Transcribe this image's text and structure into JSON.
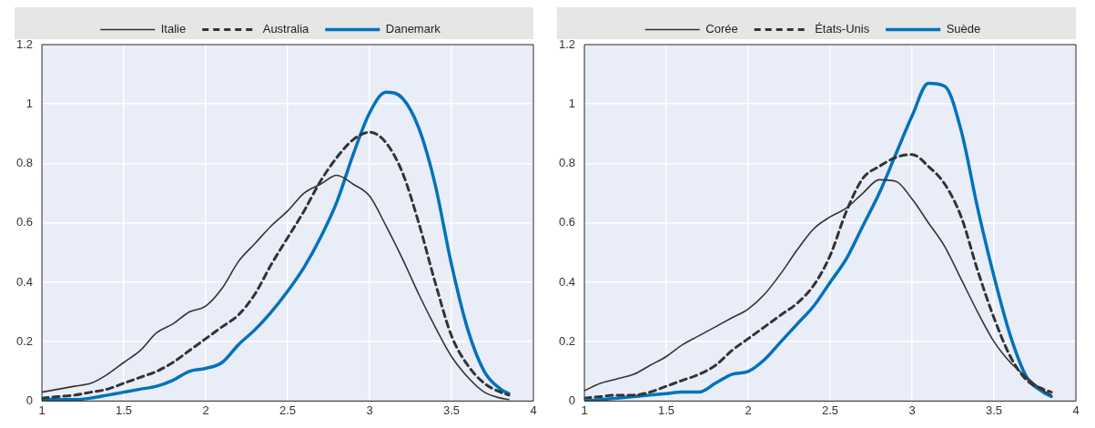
{
  "chart_data": [
    {
      "type": "line",
      "x": [
        1,
        1.1,
        1.2,
        1.3,
        1.4,
        1.5,
        1.6,
        1.7,
        1.8,
        1.9,
        2,
        2.1,
        2.2,
        2.3,
        2.4,
        2.5,
        2.6,
        2.7,
        2.8,
        2.9,
        3,
        3.1,
        3.2,
        3.3,
        3.4,
        3.5,
        3.6,
        3.7,
        3.8,
        3.85
      ],
      "series": [
        {
          "name": "Italie",
          "color": "#333333",
          "line_style": "solid",
          "values": [
            0.03,
            0.04,
            0.05,
            0.06,
            0.09,
            0.13,
            0.17,
            0.23,
            0.26,
            0.3,
            0.32,
            0.38,
            0.47,
            0.53,
            0.59,
            0.64,
            0.7,
            0.73,
            0.76,
            0.73,
            0.69,
            0.59,
            0.48,
            0.36,
            0.25,
            0.15,
            0.08,
            0.03,
            0.01,
            0.005
          ]
        },
        {
          "name": "Australia",
          "color": "#333333",
          "line_style": "dashed",
          "values": [
            0.01,
            0.015,
            0.02,
            0.03,
            0.04,
            0.06,
            0.08,
            0.1,
            0.13,
            0.17,
            0.21,
            0.25,
            0.29,
            0.36,
            0.46,
            0.55,
            0.64,
            0.74,
            0.82,
            0.88,
            0.905,
            0.87,
            0.77,
            0.6,
            0.4,
            0.22,
            0.12,
            0.06,
            0.03,
            0.02
          ]
        },
        {
          "name": "Danemark",
          "color": "#0072bc",
          "line_style": "solid",
          "values": [
            0.005,
            0.005,
            0.005,
            0.01,
            0.02,
            0.03,
            0.04,
            0.05,
            0.07,
            0.1,
            0.11,
            0.13,
            0.19,
            0.24,
            0.3,
            0.37,
            0.45,
            0.55,
            0.67,
            0.83,
            0.97,
            1.04,
            1.02,
            0.92,
            0.73,
            0.46,
            0.24,
            0.1,
            0.04,
            0.025
          ]
        }
      ],
      "xlim": [
        1,
        4
      ],
      "xticks": [
        1,
        1.5,
        2,
        2.5,
        3,
        3.5,
        4
      ],
      "ylim": [
        0,
        1.2
      ],
      "yticks": [
        0,
        0.2,
        0.4,
        0.6,
        0.8,
        1,
        1.2
      ],
      "grid": true,
      "legend": "top"
    },
    {
      "type": "line",
      "x": [
        1,
        1.1,
        1.2,
        1.3,
        1.4,
        1.5,
        1.6,
        1.7,
        1.8,
        1.9,
        2,
        2.1,
        2.2,
        2.3,
        2.4,
        2.5,
        2.6,
        2.7,
        2.8,
        2.9,
        3,
        3.1,
        3.2,
        3.3,
        3.4,
        3.5,
        3.6,
        3.7,
        3.8,
        3.85
      ],
      "series": [
        {
          "name": "Corée",
          "color": "#333333",
          "line_style": "solid",
          "values": [
            0.035,
            0.06,
            0.075,
            0.09,
            0.12,
            0.15,
            0.19,
            0.22,
            0.25,
            0.28,
            0.31,
            0.36,
            0.43,
            0.51,
            0.58,
            0.62,
            0.65,
            0.7,
            0.745,
            0.74,
            0.68,
            0.6,
            0.52,
            0.41,
            0.3,
            0.2,
            0.13,
            0.08,
            0.035,
            0.02
          ]
        },
        {
          "name": "États-Unis",
          "color": "#333333",
          "line_style": "dashed",
          "values": [
            0.01,
            0.015,
            0.02,
            0.02,
            0.03,
            0.05,
            0.07,
            0.09,
            0.12,
            0.17,
            0.21,
            0.25,
            0.29,
            0.33,
            0.39,
            0.49,
            0.64,
            0.75,
            0.79,
            0.82,
            0.83,
            0.79,
            0.73,
            0.62,
            0.44,
            0.28,
            0.15,
            0.07,
            0.04,
            0.03
          ]
        },
        {
          "name": "Suède",
          "color": "#0072bc",
          "line_style": "solid",
          "values": [
            0,
            0.005,
            0.01,
            0.015,
            0.02,
            0.025,
            0.03,
            0.03,
            0.06,
            0.09,
            0.1,
            0.14,
            0.2,
            0.26,
            0.32,
            0.4,
            0.48,
            0.59,
            0.7,
            0.83,
            0.96,
            1.07,
            1.06,
            0.91,
            0.65,
            0.42,
            0.22,
            0.08,
            0.03,
            0.015
          ]
        }
      ],
      "xlim": [
        1,
        4
      ],
      "xticks": [
        1,
        1.5,
        2,
        2.5,
        3,
        3.5,
        4
      ],
      "ylim": [
        0,
        1.2
      ],
      "yticks": [
        0,
        0.2,
        0.4,
        0.6,
        0.8,
        1,
        1.2
      ],
      "grid": true,
      "legend": "top"
    }
  ]
}
